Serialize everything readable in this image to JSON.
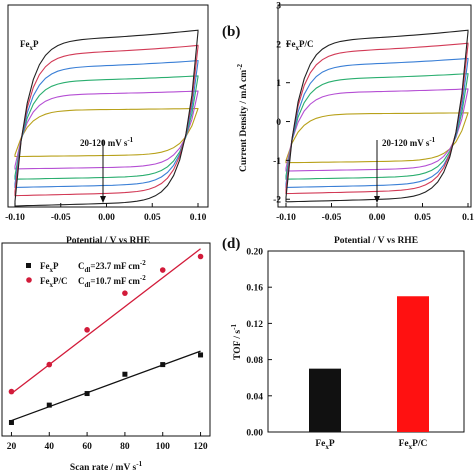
{
  "colors": {
    "axis": "#111111",
    "cv_curves": [
      "#b8a11a",
      "#b54fd4",
      "#2aae6f",
      "#3a7fd6",
      "#d23a56",
      "#222222"
    ],
    "fit_black": "#111111",
    "fit_red": "#d21b3a",
    "bar_fexp": "#111111",
    "bar_fexpc": "#ff1111"
  },
  "chart_data": [
    {
      "id": "a",
      "type": "line",
      "panel_label": "",
      "material": "FexP",
      "material_main": "Fe",
      "material_sub": "x",
      "material_tail": "P",
      "xlabel": "Potential / V vs RHE",
      "ylabel": "",
      "xlim": [
        -0.1,
        0.1
      ],
      "ylim": [
        -2.2,
        3.0
      ],
      "x_ticks": [
        "-0.10",
        "-0.05",
        "0.00",
        "0.05",
        "0.10"
      ],
      "y_ticks": [],
      "annotation": "20-120 mV s",
      "annotation_sup": "-1",
      "series": [
        {
          "scan_rate": 20,
          "upper_current": 0.3,
          "lower_current": -0.85
        },
        {
          "scan_rate": 40,
          "upper_current": 0.7,
          "lower_current": -1.15
        },
        {
          "scan_rate": 60,
          "upper_current": 1.05,
          "lower_current": -1.4
        },
        {
          "scan_rate": 80,
          "upper_current": 1.4,
          "lower_current": -1.6
        },
        {
          "scan_rate": 100,
          "upper_current": 1.75,
          "lower_current": -1.8
        },
        {
          "scan_rate": 120,
          "upper_current": 2.1,
          "lower_current": -2.05
        }
      ]
    },
    {
      "id": "b",
      "type": "line",
      "panel_label": "(b)",
      "material": "FexP/C",
      "material_main": "Fe",
      "material_sub": "x",
      "material_tail": "P/C",
      "xlabel": "Potential / V vs RHE",
      "ylabel": "Current Density / mA cm",
      "ylabel_sup": "-2",
      "xlim": [
        -0.1,
        0.1
      ],
      "ylim": [
        -2.2,
        3.0
      ],
      "x_ticks": [
        "-0.10",
        "-0.05",
        "0.00",
        "0.05",
        "0.1"
      ],
      "y_ticks": [
        "-2",
        "-1",
        "0",
        "1",
        "2",
        "3"
      ],
      "annotation": "20-120 mV s",
      "annotation_sup": "-1",
      "series": [
        {
          "scan_rate": 20,
          "upper_current": 0.2,
          "lower_current": -1.0
        },
        {
          "scan_rate": 40,
          "upper_current": 0.75,
          "lower_current": -1.2
        },
        {
          "scan_rate": 60,
          "upper_current": 1.1,
          "lower_current": -1.4
        },
        {
          "scan_rate": 80,
          "upper_current": 1.45,
          "lower_current": -1.6
        },
        {
          "scan_rate": 100,
          "upper_current": 1.8,
          "lower_current": -1.75
        },
        {
          "scan_rate": 120,
          "upper_current": 2.1,
          "lower_current": -1.95
        }
      ]
    },
    {
      "id": "c",
      "type": "scatter",
      "panel_label": "",
      "xlabel": "Scan rate / mV s",
      "xlabel_sup": "-1",
      "ylabel": "",
      "xlim": [
        15,
        125
      ],
      "ylim": [
        0,
        1
      ],
      "x_ticks": [
        "20",
        "40",
        "60",
        "80",
        "100",
        "120"
      ],
      "y_ticks": [],
      "legend": [
        {
          "main": "Fe",
          "sub": "x",
          "tail": "P",
          "cdl": "C",
          "cdl_sub": "dl",
          "cdl_value": "=23.7 mF cm",
          "cdl_sup": "-2"
        },
        {
          "main": "Fe",
          "sub": "x",
          "tail": "P/C",
          "cdl": "C",
          "cdl_sub": "dl",
          "cdl_value": "=10.7 mF cm",
          "cdl_sup": "-2"
        }
      ],
      "series": [
        {
          "name": "FexP",
          "x": [
            20,
            40,
            60,
            80,
            100,
            120
          ],
          "y": [
            0.07,
            0.16,
            0.22,
            0.32,
            0.37,
            0.42
          ],
          "fit": [
            [
              20,
              0.08
            ],
            [
              120,
              0.44
            ]
          ]
        },
        {
          "name": "FexP/C",
          "x": [
            20,
            40,
            60,
            80,
            100,
            120
          ],
          "y": [
            0.23,
            0.37,
            0.55,
            0.74,
            0.86,
            0.93
          ],
          "fit": [
            [
              20,
              0.22
            ],
            [
              120,
              0.97
            ]
          ]
        }
      ]
    },
    {
      "id": "d",
      "type": "bar",
      "panel_label": "(d)",
      "ylabel": "TOF / s",
      "ylabel_sup": "-1",
      "categories": [
        {
          "main": "Fe",
          "sub": "x",
          "tail": "P"
        },
        {
          "main": "Fe",
          "sub": "x",
          "tail": "P/C"
        }
      ],
      "values": [
        0.07,
        0.15
      ],
      "ylim": [
        0.0,
        0.2
      ],
      "y_ticks": [
        "0.00",
        "0.04",
        "0.08",
        "0.12",
        "0.16",
        "0.20"
      ]
    }
  ]
}
